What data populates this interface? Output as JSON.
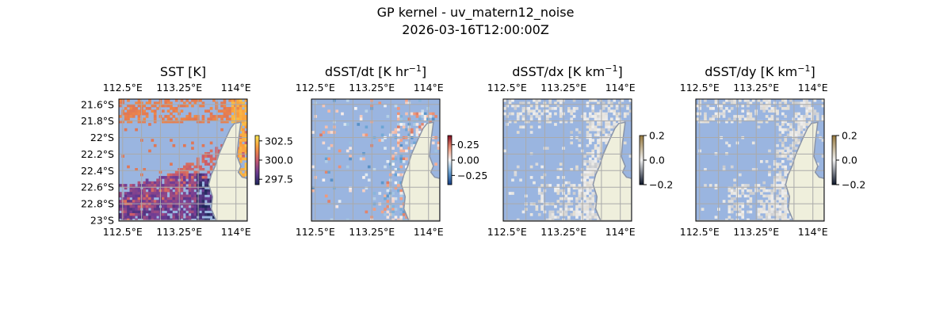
{
  "suptitle": "GP kernel - uv_matern12_noise",
  "timestamp": "2026-03-16T12:00:00Z",
  "colors": {
    "ocean": "#9ab5e0",
    "land": "#efefdc",
    "grid": "#aaaaaa",
    "coast": "#8a94a8"
  },
  "chart_data": [
    {
      "type": "heatmap",
      "title": "SST [K]",
      "title_sup": "",
      "x_ticks": [
        "112.5°E",
        "113.25°E",
        "114°E"
      ],
      "y_ticks": [
        "21.6°S",
        "21.8°S",
        "22°S",
        "22.2°S",
        "22.4°S",
        "22.6°S",
        "22.8°S",
        "23°S"
      ],
      "show_y": true,
      "colorbar": {
        "ticks": [
          "302.5",
          "300.0",
          "297.5"
        ],
        "tick_values": [
          302.5,
          300.0,
          297.5
        ],
        "range": [
          296.8,
          303.2
        ],
        "cmap": "thermal"
      }
    },
    {
      "type": "heatmap",
      "title": "dSST/dt [K hr",
      "title_sup": "−1",
      "title_end": "]",
      "x_ticks": [
        "112.5°E",
        "113.25°E",
        "114°E"
      ],
      "show_y": false,
      "colorbar": {
        "ticks": [
          "0.25",
          "0.00",
          "−0.25"
        ],
        "tick_values": [
          0.25,
          0,
          -0.25
        ],
        "range": [
          -0.4,
          0.4
        ],
        "cmap": "RdBu_r"
      }
    },
    {
      "type": "heatmap",
      "title": "dSST/dx [K km",
      "title_sup": "−1",
      "title_end": "]",
      "x_ticks": [
        "112.5°E",
        "113.25°E",
        "114°E"
      ],
      "show_y": false,
      "colorbar": {
        "ticks": [
          "0.2",
          "0.0",
          "−0.2"
        ],
        "tick_values": [
          0.2,
          0,
          -0.2
        ],
        "range": [
          -0.2,
          0.2
        ],
        "cmap": "gray-diverging"
      }
    },
    {
      "type": "heatmap",
      "title": "dSST/dy [K km",
      "title_sup": "−1",
      "title_end": "]",
      "x_ticks": [
        "112.5°E",
        "113.25°E",
        "114°E"
      ],
      "show_y": false,
      "colorbar": {
        "ticks": [
          "0.2",
          "0.0",
          "−0.2"
        ],
        "tick_values": [
          0.2,
          0,
          -0.2
        ],
        "range": [
          -0.2,
          0.2
        ],
        "cmap": "gray-diverging"
      }
    }
  ]
}
